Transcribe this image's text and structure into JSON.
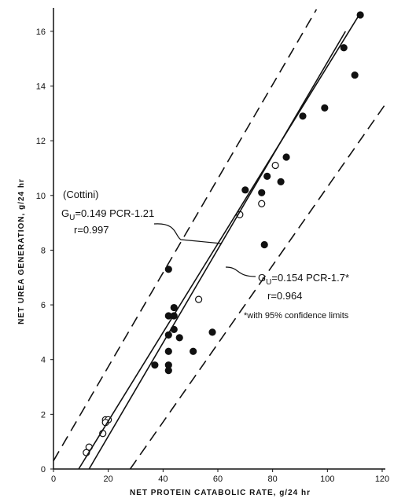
{
  "chart_data": {
    "type": "scatter",
    "x_label": "NET PROTEIN CATABOLIC RATE, g/24 hr",
    "y_label": "NET UREA GENERATION, g/24 hr",
    "xlim": [
      0,
      120
    ],
    "xticks": [
      0,
      20,
      40,
      60,
      80,
      100,
      120
    ],
    "ylim": [
      0,
      16.8
    ],
    "yticks": [
      0,
      2,
      4,
      6,
      8,
      10,
      12,
      14,
      16
    ],
    "color": "#111111",
    "series": [
      {
        "marker": "filled",
        "x": [
          112,
          106,
          110,
          99,
          91,
          85,
          83,
          78,
          76,
          70,
          77,
          42,
          44,
          42,
          44,
          44,
          42,
          46,
          42,
          51,
          58,
          37,
          42,
          42
        ],
        "values": [
          16.6,
          15.4,
          14.4,
          13.2,
          12.9,
          11.4,
          10.5,
          10.7,
          10.1,
          10.2,
          8.2,
          7.3,
          5.9,
          5.6,
          5.6,
          5.1,
          4.9,
          4.8,
          4.3,
          4.3,
          5.0,
          3.8,
          3.8,
          3.6
        ]
      },
      {
        "marker": "open",
        "x": [
          81,
          76,
          68,
          53,
          19,
          20,
          19,
          18,
          13,
          12
        ],
        "values": [
          11.1,
          9.7,
          9.3,
          6.2,
          1.8,
          1.8,
          1.7,
          1.3,
          0.8,
          0.6
        ]
      },
      {
        "marker": "solid-line",
        "x": [
          9.2,
          111.6
        ],
        "values": [
          0,
          16.6
        ]
      },
      {
        "marker": "solid-line",
        "x": [
          13,
          106.6
        ],
        "values": [
          0,
          16.0
        ]
      },
      {
        "marker": "dashed-line",
        "x": [
          0,
          96
        ],
        "values": [
          0.3,
          16.8
        ]
      },
      {
        "marker": "dashed-line",
        "x": [
          28,
          121.6
        ],
        "values": [
          0,
          13.4
        ]
      }
    ],
    "annotations": {
      "cottini": "(Cottini)",
      "eq1": {
        "g": "G",
        "sub": "U",
        "rest": "=0.149 PCR-1.21"
      },
      "r1": "r=0.997",
      "eq2": {
        "g": "G",
        "sub": "U",
        "rest": "=0.154 PCR-1.7*"
      },
      "r2": "r=0.964",
      "note": "*with 95% confidence limits"
    }
  }
}
